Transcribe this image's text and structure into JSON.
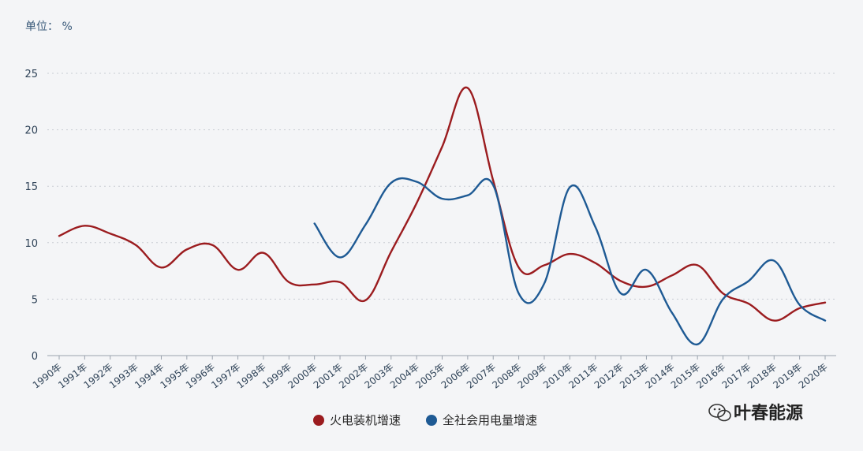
{
  "chart_data": {
    "type": "line",
    "unit_label": "单位： %",
    "x": [
      "1990年",
      "1991年",
      "1992年",
      "1993年",
      "1994年",
      "1995年",
      "1996年",
      "1997年",
      "1998年",
      "1999年",
      "2000年",
      "2001年",
      "2002年",
      "2003年",
      "2004年",
      "2005年",
      "2006年",
      "2007年",
      "2008年",
      "2009年",
      "2010年",
      "2011年",
      "2012年",
      "2013年",
      "2014年",
      "2015年",
      "2016年",
      "2017年",
      "2018年",
      "2019年",
      "2020年"
    ],
    "yticks": [
      "0",
      "5",
      "10",
      "15",
      "20",
      "25"
    ],
    "ylim": [
      0,
      25
    ],
    "grid": true,
    "legend_position": "bottom",
    "series": [
      {
        "name": "火电装机增速",
        "color": "#9b1c1f",
        "values": [
          10.6,
          11.5,
          10.8,
          9.8,
          7.8,
          9.4,
          9.8,
          7.6,
          9.1,
          6.5,
          6.3,
          6.5,
          4.9,
          9.2,
          13.5,
          18.5,
          23.7,
          15.5,
          7.8,
          8.0,
          9.0,
          8.2,
          6.6,
          6.1,
          7.1,
          8.0,
          5.5,
          4.6,
          3.1,
          4.2,
          4.7
        ]
      },
      {
        "name": "全社会用电量增速",
        "color": "#1e5a94",
        "values": [
          null,
          null,
          null,
          null,
          null,
          null,
          null,
          null,
          null,
          null,
          11.7,
          8.7,
          11.6,
          15.3,
          15.4,
          13.9,
          14.2,
          15.1,
          5.5,
          6.4,
          14.9,
          11.4,
          5.5,
          7.6,
          3.8,
          1.0,
          5.0,
          6.6,
          8.4,
          4.5,
          3.1
        ]
      }
    ]
  },
  "watermark": {
    "text": "叶春能源",
    "icon": "wechat-icon"
  }
}
